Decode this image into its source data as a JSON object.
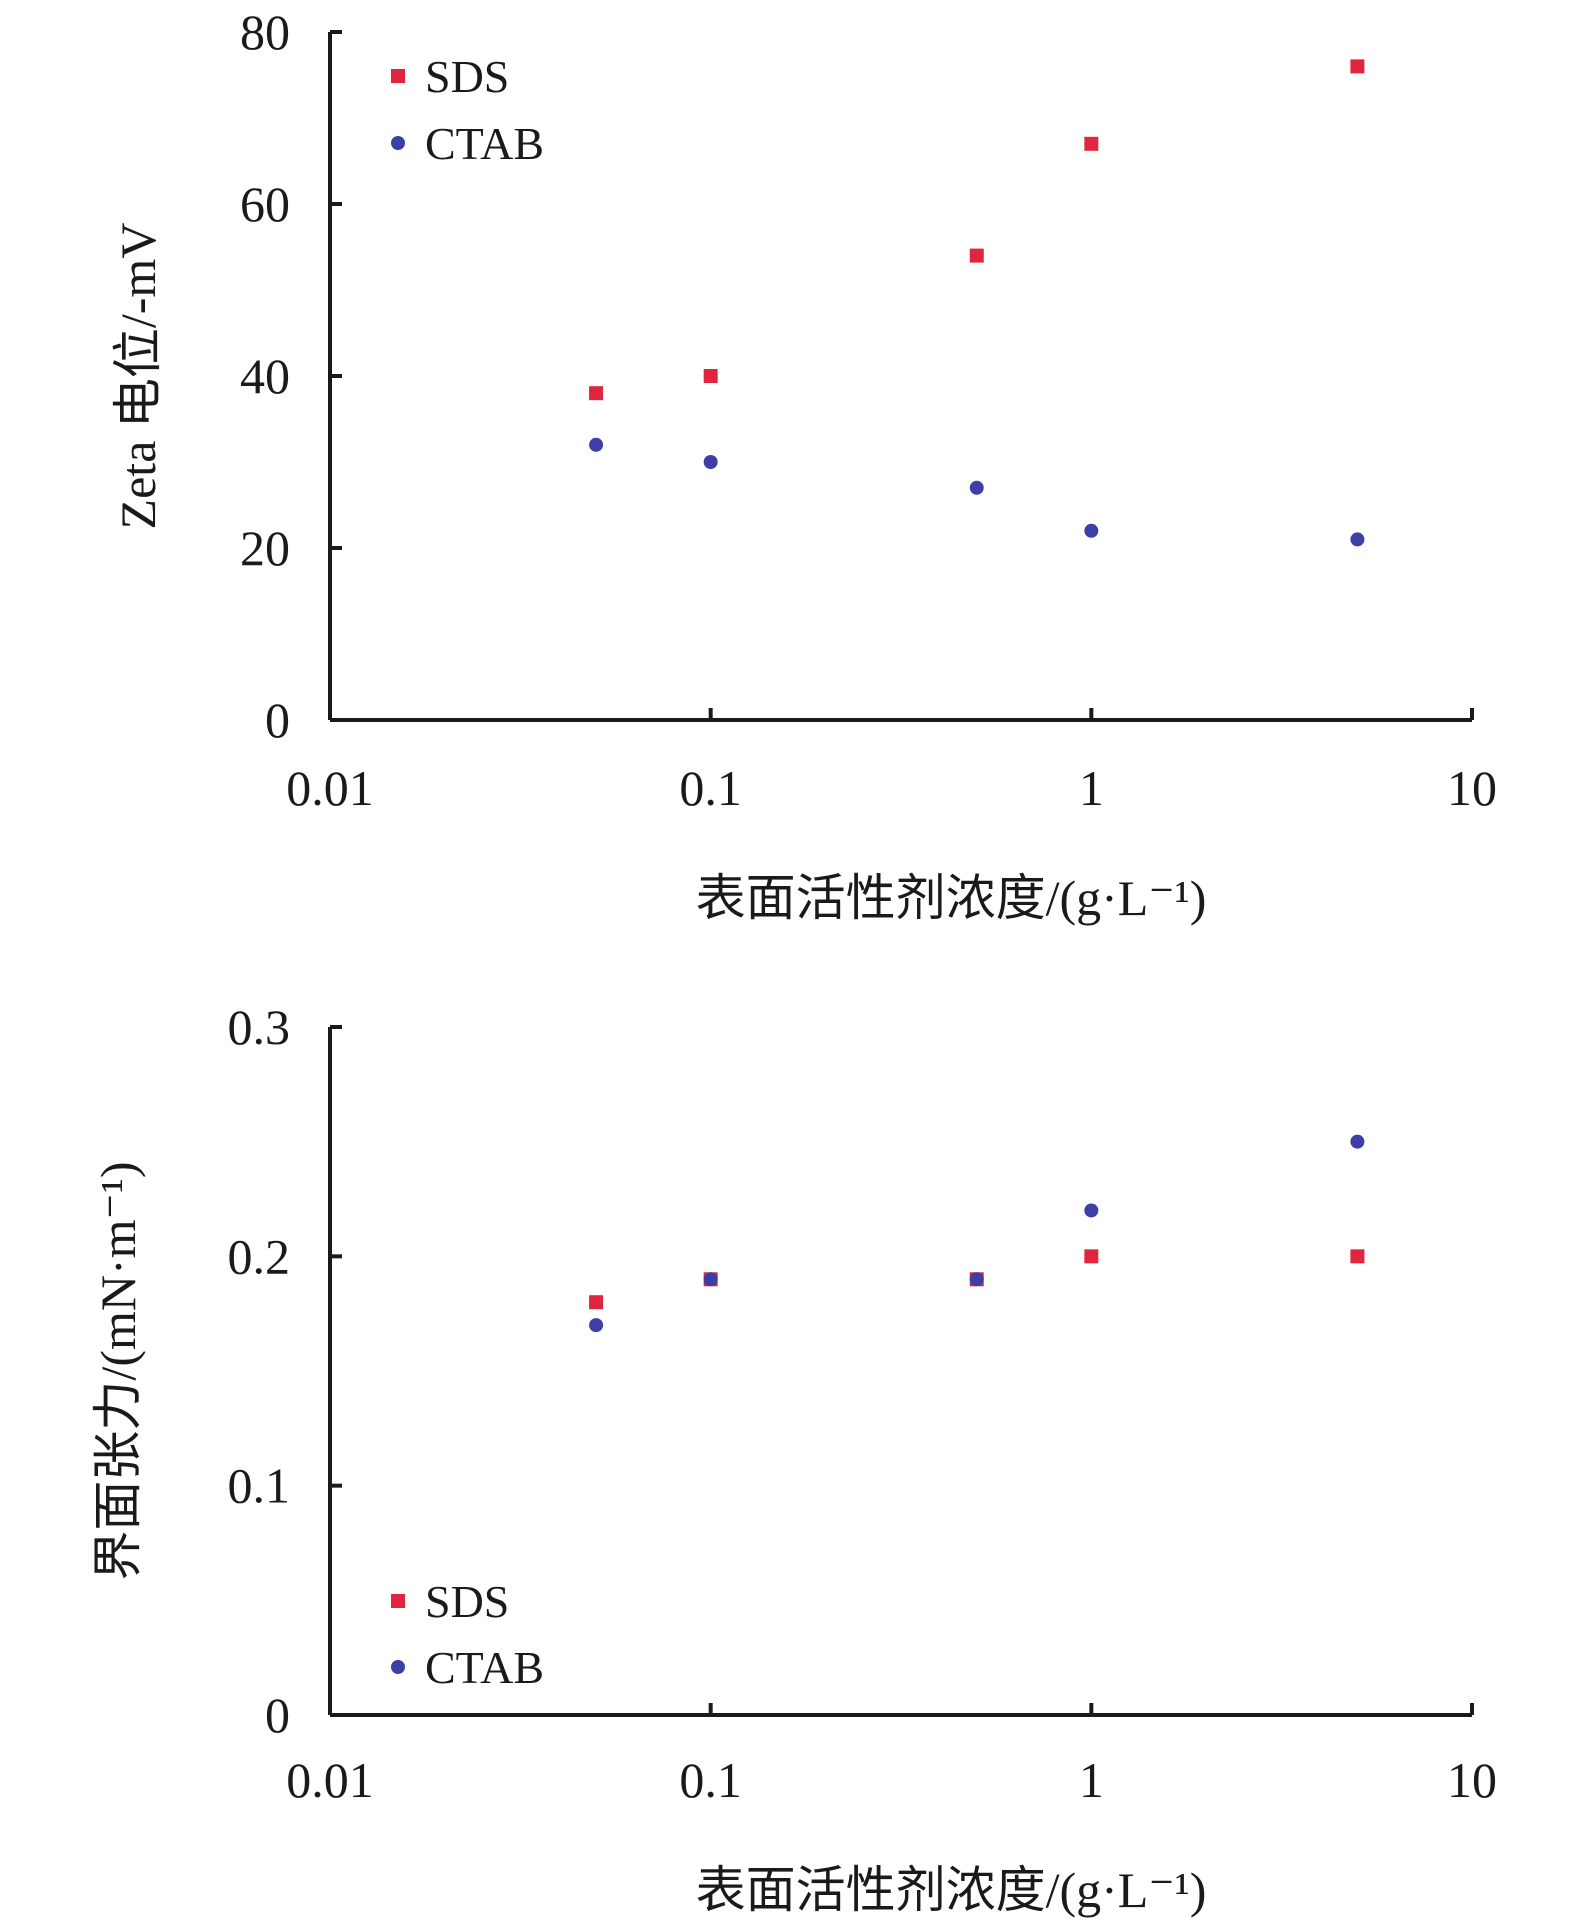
{
  "chart_data": [
    {
      "type": "scatter",
      "xscale": "log",
      "xlim": [
        0.01,
        10
      ],
      "ylim": [
        0,
        80
      ],
      "xticks": [
        "0.01",
        "0.1",
        "1",
        "10"
      ],
      "yticks": [
        "0",
        "20",
        "40",
        "60",
        "80"
      ],
      "xlabel": "表面活性剂浓度/(g·L⁻¹)",
      "ylabel": "Zeta 电位/-mV",
      "legend_position": "top-left",
      "series": [
        {
          "name": "SDS",
          "marker": "square",
          "color": "#e0263e",
          "x": [
            0.05,
            0.1,
            0.5,
            1,
            5
          ],
          "y": [
            38,
            40,
            54,
            67,
            76
          ]
        },
        {
          "name": "CTAB",
          "marker": "circle",
          "color": "#3b3fa6",
          "x": [
            0.05,
            0.1,
            0.5,
            1,
            5
          ],
          "y": [
            32,
            30,
            27,
            22,
            21
          ]
        }
      ]
    },
    {
      "type": "scatter",
      "xscale": "log",
      "xlim": [
        0.01,
        10
      ],
      "ylim": [
        0,
        0.3
      ],
      "xticks": [
        "0.01",
        "0.1",
        "1",
        "10"
      ],
      "yticks": [
        "0",
        "0.1",
        "0.2",
        "0.3"
      ],
      "xlabel": "表面活性剂浓度/(g·L⁻¹)",
      "ylabel": "界面张力/(mN·m⁻¹)",
      "legend_position": "bottom-left",
      "series": [
        {
          "name": "SDS",
          "marker": "square",
          "color": "#e0263e",
          "x": [
            0.05,
            0.1,
            0.5,
            1,
            5
          ],
          "y": [
            0.18,
            0.19,
            0.19,
            0.2,
            0.2
          ]
        },
        {
          "name": "CTAB",
          "marker": "circle",
          "color": "#3b3fa6",
          "x": [
            0.05,
            0.1,
            0.5,
            1,
            5
          ],
          "y": [
            0.17,
            0.19,
            0.19,
            0.22,
            0.25
          ]
        }
      ]
    }
  ]
}
